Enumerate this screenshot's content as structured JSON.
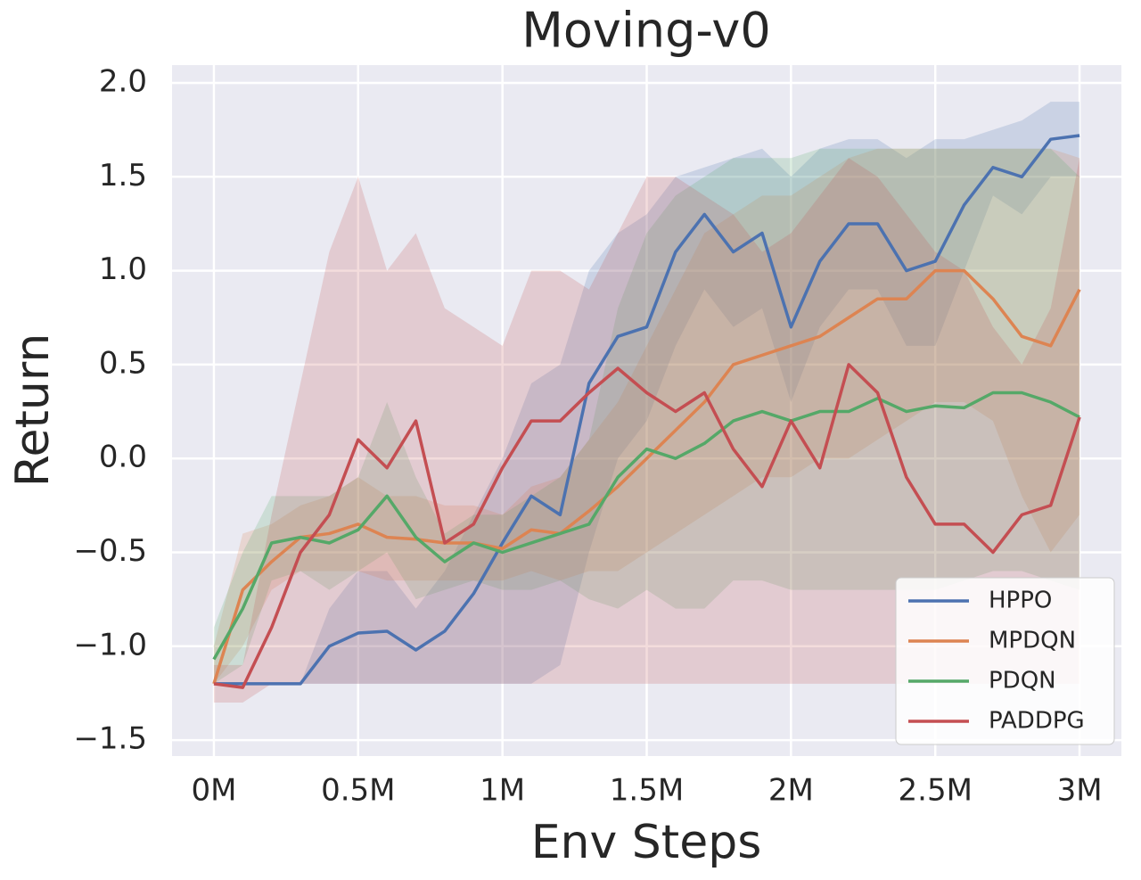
{
  "chart_data": {
    "type": "line",
    "title": "Moving-v0",
    "x_label": "Env Steps",
    "y_label": "Return",
    "x": [
      0,
      0.1,
      0.2,
      0.3,
      0.4,
      0.5,
      0.6,
      0.7,
      0.8,
      0.9,
      1.0,
      1.1,
      1.2,
      1.3,
      1.4,
      1.5,
      1.6,
      1.7,
      1.8,
      1.9,
      2.0,
      2.1,
      2.2,
      2.3,
      2.4,
      2.5,
      2.6,
      2.7,
      2.8,
      2.9,
      3.0
    ],
    "series": [
      {
        "name": "HPPO",
        "color": "#4c72b0",
        "values": [
          -1.2,
          -1.2,
          -1.2,
          -1.2,
          -1.0,
          -0.93,
          -0.92,
          -1.02,
          -0.92,
          -0.72,
          -0.45,
          -0.2,
          -0.3,
          0.4,
          0.65,
          0.7,
          1.1,
          1.3,
          1.1,
          1.2,
          0.7,
          1.05,
          1.25,
          1.25,
          1.0,
          1.05,
          1.35,
          1.55,
          1.5,
          1.7,
          1.72
        ],
        "lower": [
          -1.2,
          -1.2,
          -1.2,
          -1.2,
          -1.2,
          -1.2,
          -1.2,
          -1.2,
          -1.2,
          -1.2,
          -1.2,
          -1.2,
          -1.1,
          -0.5,
          0.0,
          0.2,
          0.6,
          0.9,
          0.7,
          0.8,
          0.3,
          0.7,
          0.9,
          0.9,
          0.6,
          0.6,
          1.0,
          1.4,
          1.3,
          1.5,
          1.5
        ],
        "upper": [
          -1.2,
          -1.2,
          -1.2,
          -1.2,
          -0.8,
          -0.6,
          -0.6,
          -0.8,
          -0.6,
          -0.3,
          0.0,
          0.4,
          0.5,
          1.0,
          1.2,
          1.3,
          1.5,
          1.55,
          1.6,
          1.65,
          1.5,
          1.65,
          1.7,
          1.7,
          1.6,
          1.7,
          1.7,
          1.75,
          1.8,
          1.9,
          1.9
        ]
      },
      {
        "name": "MPDQN",
        "color": "#dd8452",
        "values": [
          -1.2,
          -0.7,
          -0.55,
          -0.42,
          -0.4,
          -0.35,
          -0.42,
          -0.43,
          -0.45,
          -0.45,
          -0.48,
          -0.38,
          -0.4,
          -0.28,
          -0.15,
          0.0,
          0.15,
          0.3,
          0.5,
          0.55,
          0.6,
          0.65,
          0.75,
          0.85,
          0.85,
          1.0,
          1.0,
          0.85,
          0.65,
          0.6,
          0.9
        ],
        "lower": [
          -1.2,
          -1.0,
          -0.7,
          -0.6,
          -0.6,
          -0.6,
          -0.65,
          -0.65,
          -0.65,
          -0.65,
          -0.65,
          -0.6,
          -0.65,
          -0.6,
          -0.6,
          -0.5,
          -0.4,
          -0.3,
          -0.2,
          -0.1,
          -0.1,
          0.0,
          0.0,
          0.1,
          0.2,
          0.3,
          0.3,
          0.2,
          -0.2,
          -0.5,
          -0.3
        ],
        "upper": [
          -1.0,
          -0.4,
          -0.35,
          -0.25,
          -0.2,
          -0.1,
          -0.2,
          -0.2,
          -0.25,
          -0.25,
          -0.3,
          -0.15,
          -0.1,
          0.1,
          0.3,
          0.6,
          0.9,
          1.2,
          1.3,
          1.4,
          1.4,
          1.5,
          1.6,
          1.65,
          1.65,
          1.65,
          1.65,
          1.65,
          1.65,
          1.65,
          1.6
        ]
      },
      {
        "name": "PDQN",
        "color": "#55a868",
        "values": [
          -1.07,
          -0.8,
          -0.45,
          -0.42,
          -0.45,
          -0.38,
          -0.2,
          -0.42,
          -0.55,
          -0.45,
          -0.5,
          -0.45,
          -0.4,
          -0.35,
          -0.1,
          0.05,
          0.0,
          0.08,
          0.2,
          0.25,
          0.2,
          0.25,
          0.25,
          0.32,
          0.25,
          0.28,
          0.27,
          0.35,
          0.35,
          0.3,
          0.22
        ],
        "lower": [
          -1.2,
          -1.1,
          -0.65,
          -0.6,
          -0.7,
          -0.6,
          -0.5,
          -0.75,
          -0.7,
          -0.65,
          -0.7,
          -0.7,
          -0.65,
          -0.75,
          -0.8,
          -0.7,
          -0.8,
          -0.8,
          -0.65,
          -0.65,
          -0.7,
          -0.7,
          -0.7,
          -0.7,
          -0.7,
          -0.7,
          -0.65,
          -0.6,
          -0.6,
          -0.65,
          -0.7
        ],
        "upper": [
          -0.9,
          -0.5,
          -0.2,
          -0.2,
          -0.2,
          -0.1,
          0.3,
          -0.1,
          -0.4,
          -0.3,
          -0.3,
          -0.2,
          -0.1,
          0.1,
          0.8,
          1.2,
          1.4,
          1.5,
          1.6,
          1.6,
          1.6,
          1.65,
          1.65,
          1.65,
          1.65,
          1.65,
          1.65,
          1.65,
          1.65,
          1.65,
          1.5
        ]
      },
      {
        "name": "PADDPG",
        "color": "#c44e52",
        "values": [
          -1.2,
          -1.22,
          -0.9,
          -0.5,
          -0.3,
          0.1,
          -0.05,
          0.2,
          -0.45,
          -0.35,
          -0.05,
          0.2,
          0.2,
          0.35,
          0.48,
          0.35,
          0.25,
          0.35,
          0.05,
          -0.15,
          0.2,
          -0.05,
          0.5,
          0.35,
          -0.1,
          -0.35,
          -0.35,
          -0.5,
          -0.3,
          -0.25,
          0.22
        ],
        "lower": [
          -1.3,
          -1.3,
          -1.2,
          -1.2,
          -1.2,
          -1.2,
          -1.2,
          -1.2,
          -1.2,
          -1.2,
          -1.2,
          -1.2,
          -1.2,
          -1.2,
          -1.2,
          -1.2,
          -1.2,
          -1.2,
          -1.2,
          -1.2,
          -1.2,
          -1.2,
          -1.2,
          -1.2,
          -1.2,
          -1.2,
          -1.2,
          -1.2,
          -1.2,
          -1.2,
          -1.2
        ],
        "upper": [
          -1.1,
          -1.1,
          -0.3,
          0.4,
          1.1,
          1.5,
          1.0,
          1.2,
          0.8,
          0.7,
          0.6,
          1.0,
          1.0,
          0.9,
          1.2,
          1.5,
          1.5,
          1.4,
          1.3,
          1.1,
          1.2,
          1.4,
          1.6,
          1.5,
          1.3,
          1.1,
          1.0,
          0.7,
          0.5,
          0.8,
          1.6
        ]
      }
    ],
    "xlim": [
      -0.145,
      3.145
    ],
    "ylim": [
      -1.585,
      2.095
    ],
    "xticks": [
      {
        "value": 0,
        "label": "0M"
      },
      {
        "value": 0.5,
        "label": "0.5M"
      },
      {
        "value": 1,
        "label": "1M"
      },
      {
        "value": 1.5,
        "label": "1.5M"
      },
      {
        "value": 2,
        "label": "2M"
      },
      {
        "value": 2.5,
        "label": "2.5M"
      },
      {
        "value": 3,
        "label": "3M"
      }
    ],
    "yticks": [
      {
        "value": -1.5,
        "label": "−1.5"
      },
      {
        "value": -1.0,
        "label": "−1.0"
      },
      {
        "value": -0.5,
        "label": "−0.5"
      },
      {
        "value": 0,
        "label": "0.0"
      },
      {
        "value": 0.5,
        "label": "0.5"
      },
      {
        "value": 1.0,
        "label": "1.0"
      },
      {
        "value": 1.5,
        "label": "1.5"
      },
      {
        "value": 2.0,
        "label": "2.0"
      }
    ],
    "grid": true,
    "legend": "lower right"
  }
}
